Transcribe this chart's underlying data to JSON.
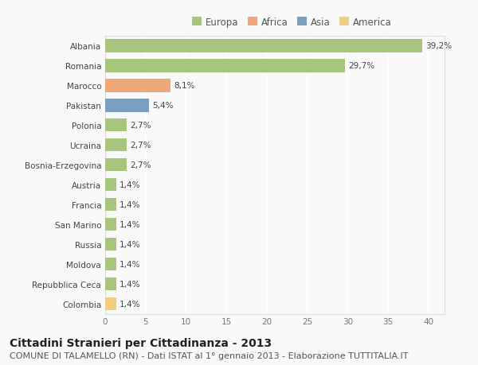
{
  "categories": [
    "Albania",
    "Romania",
    "Marocco",
    "Pakistan",
    "Polonia",
    "Ucraina",
    "Bosnia-Erzegovina",
    "Austria",
    "Francia",
    "San Marino",
    "Russia",
    "Moldova",
    "Repubblica Ceca",
    "Colombia"
  ],
  "values": [
    39.2,
    29.7,
    8.1,
    5.4,
    2.7,
    2.7,
    2.7,
    1.4,
    1.4,
    1.4,
    1.4,
    1.4,
    1.4,
    1.4
  ],
  "labels": [
    "39,2%",
    "29,7%",
    "8,1%",
    "5,4%",
    "2,7%",
    "2,7%",
    "2,7%",
    "1,4%",
    "1,4%",
    "1,4%",
    "1,4%",
    "1,4%",
    "1,4%",
    "1,4%"
  ],
  "continents": [
    "Europa",
    "Europa",
    "Africa",
    "Asia",
    "Europa",
    "Europa",
    "Europa",
    "Europa",
    "Europa",
    "Europa",
    "Europa",
    "Europa",
    "Europa",
    "America"
  ],
  "colors": {
    "Europa": "#a8c57e",
    "Africa": "#f0a87a",
    "Asia": "#7a9fc0",
    "America": "#f0d080"
  },
  "legend_labels": [
    "Europa",
    "Africa",
    "Asia",
    "America"
  ],
  "xlim": [
    0,
    42
  ],
  "xticks": [
    0,
    5,
    10,
    15,
    20,
    25,
    30,
    35,
    40
  ],
  "title": "Cittadini Stranieri per Cittadinanza - 2013",
  "subtitle": "COMUNE DI TALAMELLO (RN) - Dati ISTAT al 1° gennaio 2013 - Elaborazione TUTTITALIA.IT",
  "background_color": "#f9f9f9",
  "grid_color": "#ffffff",
  "bar_height": 0.65,
  "title_fontsize": 10,
  "subtitle_fontsize": 8,
  "label_fontsize": 7.5,
  "tick_fontsize": 7.5,
  "legend_fontsize": 8.5
}
